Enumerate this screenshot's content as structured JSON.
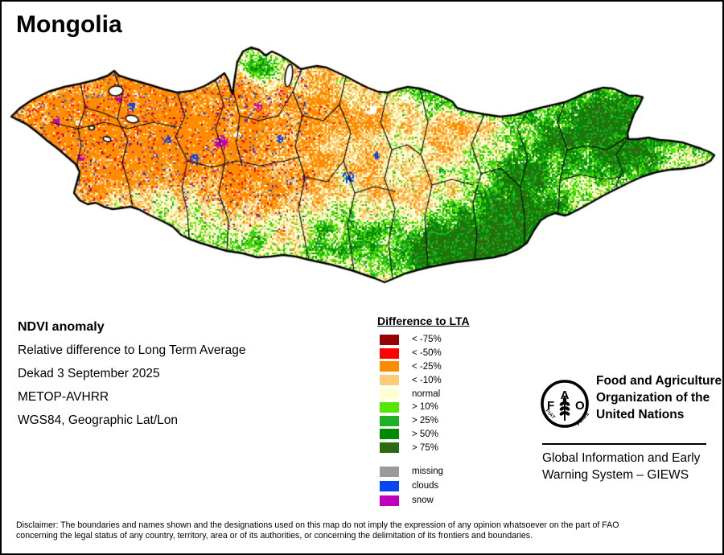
{
  "page": {
    "title": "Mongolia"
  },
  "info": {
    "heading": "NDVI anomaly",
    "lines": [
      "Relative difference to Long Term Average",
      "Dekad 3 September 2025",
      "METOP-AVHRR",
      "WGS84, Geographic Lat/Lon"
    ]
  },
  "legend": {
    "title": "Difference to LTA",
    "items": [
      {
        "label": "< -75%",
        "color": "#990000"
      },
      {
        "label": "< -50%",
        "color": "#FF0000"
      },
      {
        "label": "< -25%",
        "color": "#FF8C00"
      },
      {
        "label": "< -10%",
        "color": "#FACC78"
      },
      {
        "label": "normal",
        "color": "#FFFFD2"
      },
      {
        "label": "> 10%",
        "color": "#55E600"
      },
      {
        "label": "> 25%",
        "color": "#1FB024"
      },
      {
        "label": "> 50%",
        "color": "#008A00"
      },
      {
        "label": "> 75%",
        "color": "#2D6A0F"
      }
    ],
    "extra_items": [
      {
        "label": "missing",
        "color": "#9A9A9A"
      },
      {
        "label": "clouds",
        "color": "#0A46F0"
      },
      {
        "label": "snow",
        "color": "#BE00BE"
      }
    ]
  },
  "fao": {
    "logo_letters": [
      "F",
      "A",
      "O"
    ],
    "motto": [
      "FIAT",
      "PANIS"
    ],
    "org_lines": [
      "Food and Agriculture",
      "Organization of the",
      "United Nations"
    ],
    "giews_lines": [
      "Global Information and Early",
      "Warning System – GIEWS"
    ]
  },
  "disclaimer": {
    "lines": [
      "Disclaimer: The boundaries and names shown and the designations used on this map do not imply the expression of any opinion whatsoever on the part of FAO",
      "concerning the legal status of any country, territory, area or of its authorities, or concerning the delimitation of its frontiers and boundaries."
    ]
  }
}
